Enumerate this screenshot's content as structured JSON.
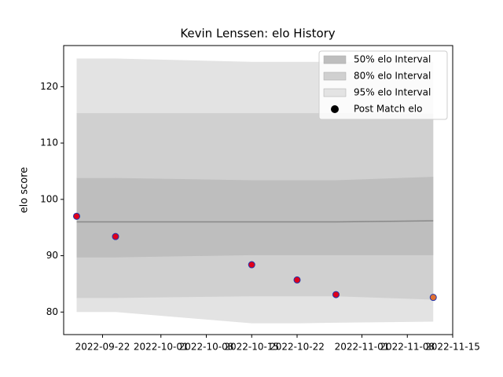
{
  "chart_data": {
    "type": "band",
    "title": "Kevin Lenssen: elo History",
    "y_label": "elo score",
    "x": [
      "2022-09-18",
      "2022-09-24",
      "2022-10-15",
      "2022-10-22",
      "2022-10-28",
      "2022-11-12"
    ],
    "bands": [
      {
        "name": "95% elo Interval",
        "color": "#e3e3e3",
        "lower": [
          80,
          80,
          78,
          78,
          78.1,
          78.3
        ],
        "upper": [
          125,
          125,
          124.4,
          124.4,
          124.4,
          124.4
        ]
      },
      {
        "name": "80% elo Interval",
        "color": "#d0d0d0",
        "lower": [
          82.5,
          82.5,
          82.8,
          82.8,
          82.8,
          82.2
        ],
        "upper": [
          115.3,
          115.3,
          115.3,
          115.3,
          115.3,
          115.2
        ]
      },
      {
        "name": "50% elo Interval",
        "color": "#bebebe",
        "lower": [
          89.7,
          89.7,
          90.1,
          90.1,
          90.1,
          90.1
        ],
        "upper": [
          103.8,
          103.8,
          103.4,
          103.4,
          103.4,
          104
        ]
      }
    ],
    "mean": {
      "color": "#888888",
      "values": [
        96,
        96,
        96,
        96,
        96,
        96.2
      ]
    },
    "points": {
      "name": "Post Match elo",
      "edge_color": "#2233aa",
      "colors": [
        "#e0001a",
        "#e0001a",
        "#e0001a",
        "#e0001a",
        "#e0001a",
        "#e07030"
      ],
      "values": [
        97,
        93.4,
        88.4,
        85.7,
        83.1,
        82.6
      ]
    },
    "xlim": [
      "2022-09-16",
      "2022-11-15"
    ],
    "xticks": [
      "2022-09-22",
      "2022-10-01",
      "2022-10-08",
      "2022-10-15",
      "2022-10-22",
      "2022-11-01",
      "2022-11-08",
      "2022-11-15"
    ],
    "ylim": [
      76,
      127.3
    ],
    "yticks": [
      80,
      90,
      100,
      110,
      120
    ],
    "legend": "upper right"
  }
}
